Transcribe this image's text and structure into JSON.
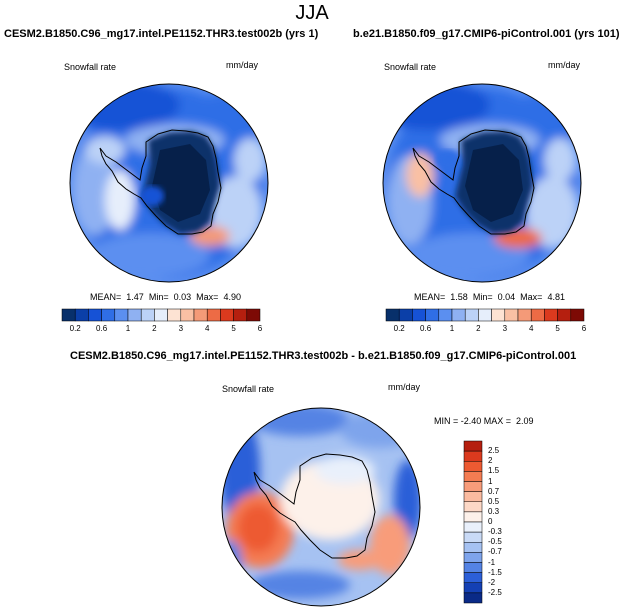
{
  "figure": {
    "title": "JJA"
  },
  "panels": [
    {
      "title": "CESM2.B1850.C96_mg17.intel.PE1152.THR3.test002b (yrs 1)",
      "variable": "Snowfall rate",
      "units": "mm/day",
      "stats": {
        "mean_label": "MEAN=",
        "mean": "1.47",
        "min_label": "Min=",
        "min": "0.03",
        "max_label": "Max=",
        "max": "4.90"
      }
    },
    {
      "title": "b.e21.B1850.f09_g17.CMIP6-piControl.001 (yrs 101)",
      "variable": "Snowfall rate",
      "units": "mm/day",
      "stats": {
        "mean_label": "MEAN=",
        "mean": "1.58",
        "min_label": "Min=",
        "min": "0.04",
        "max_label": "Max=",
        "max": "4.81"
      }
    },
    {
      "title": "CESM2.B1850.C96_mg17.intel.PE1152.THR3.test002b - b.e21.B1850.f09_g17.CMIP6-piControl.001",
      "variable": "Snowfall rate",
      "units": "mm/day",
      "stats": {
        "text": "MIN = -2.40 MAX =  2.09"
      }
    }
  ],
  "colorbar_abs": {
    "labels": [
      "0.2",
      "0.6",
      "1",
      "2",
      "3",
      "4",
      "5",
      "6"
    ],
    "colors": [
      "#08306b",
      "#0b3fa8",
      "#1652d6",
      "#2f6ee6",
      "#5b8ff0",
      "#8fb1f2",
      "#bcd2f7",
      "#e6eefb",
      "#fde3d3",
      "#f9c0a4",
      "#f49a78",
      "#ed6b45",
      "#db3a1e",
      "#b51f0f",
      "#7d0a05"
    ]
  },
  "colorbar_diff": {
    "labels": [
      "2.5",
      "2",
      "1.5",
      "1",
      "0.7",
      "0.5",
      "0.3",
      "0",
      "-0.3",
      "-0.5",
      "-0.7",
      "-1",
      "-1.5",
      "-2",
      "-2.5"
    ],
    "colors": [
      "#b51f0f",
      "#db3a1e",
      "#ed5a32",
      "#f47c52",
      "#f89c7a",
      "#fbbba0",
      "#fdd8c6",
      "#fdf1ea",
      "#e9f0fb",
      "#c9daf6",
      "#a6c2f2",
      "#7ea4ec",
      "#5483e4",
      "#2c5fd8",
      "#1440b4",
      "#0a2a87"
    ]
  }
}
